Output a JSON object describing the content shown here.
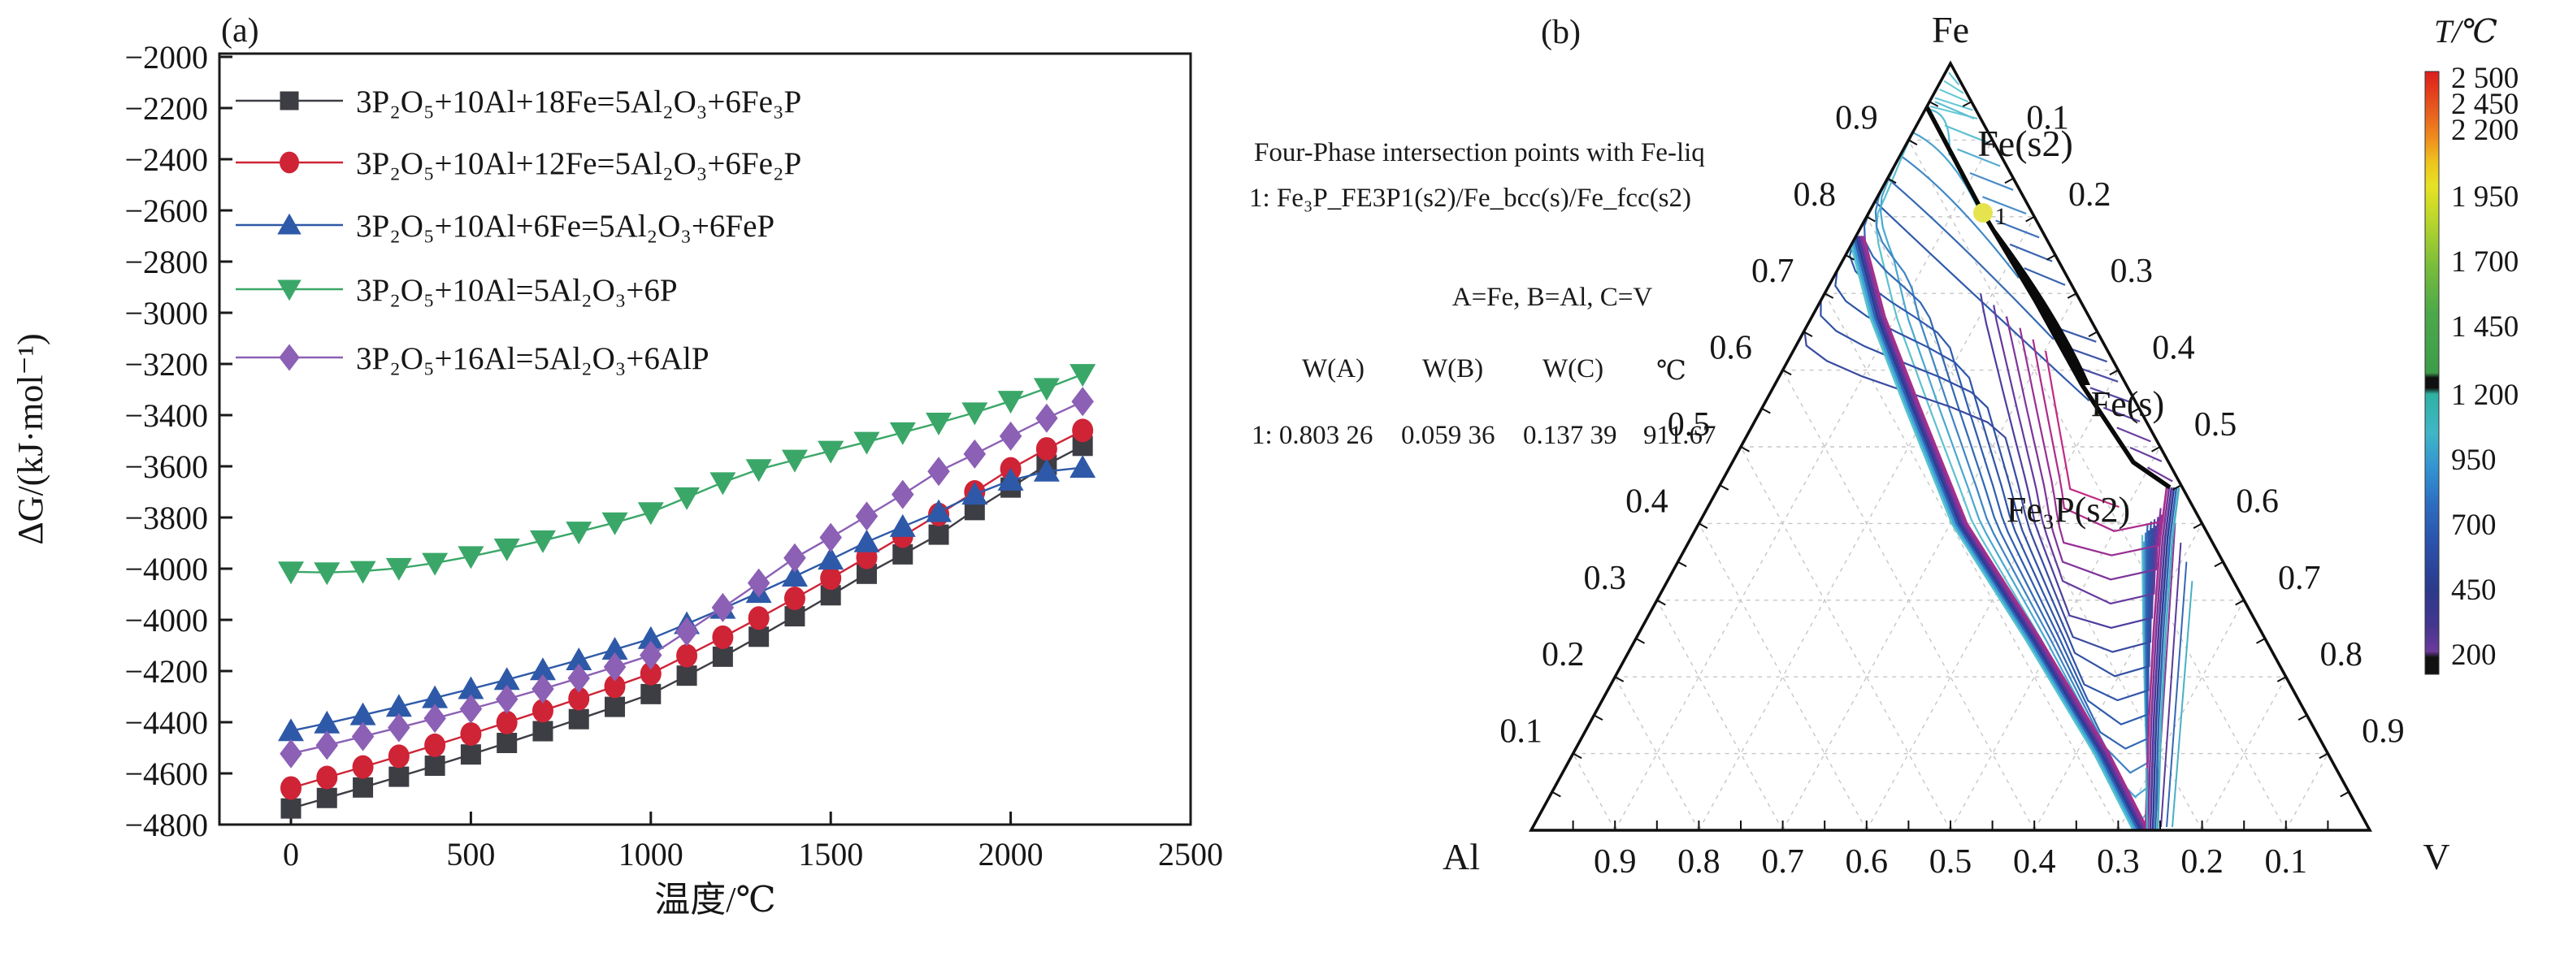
{
  "figure": {
    "panel_a_label": "(a)",
    "panel_b_label": "(b)"
  },
  "panel_a": {
    "y_title": "ΔG/(kJ·mol⁻¹)",
    "x_title": "温度/℃",
    "y_tick_labels": [
      "−2000",
      "−2200",
      "−2400",
      "−2600",
      "−2800",
      "−3000",
      "−3200",
      "−3400",
      "−3600",
      "−3800",
      "−4000",
      "−4000",
      "−4200",
      "−4400",
      "−4600",
      "−4800"
    ],
    "x_tick_labels": [
      "0",
      "500",
      "1000",
      "1500",
      "2000",
      "2500"
    ],
    "legend": [
      {
        "label": "3P₂O₅+10Al+18Fe=5Al₂O₃+6Fe₃P",
        "color": "#3d3d44",
        "marker": "square"
      },
      {
        "label": "3P₂O₅+10Al+12Fe=5Al₂O₃+6Fe₂P",
        "color": "#cf2336",
        "marker": "circle"
      },
      {
        "label": "3P₂O₅+10Al+6Fe=5Al₂O₃+6FeP",
        "color": "#2e59a8",
        "marker": "triangle-up"
      },
      {
        "label": "3P₂O₅+10Al=5Al₂O₃+6P",
        "color": "#3aa768",
        "marker": "triangle-down"
      },
      {
        "label": "3P₂O₅+16Al=5Al₂O₃+6AlP",
        "color": "#8b60b5",
        "marker": "diamond"
      }
    ]
  },
  "panel_b": {
    "annotation": {
      "line1": "Four-Phase intersection points with Fe-liq",
      "line2": "1: Fe₃P_FE3P1(s2)/Fe_bcc(s)/Fe_fcc(s2)",
      "line3": "A=Fe, B=Al, C=V",
      "table_headers": [
        "W(A)",
        "W(B)",
        "W(C)",
        "℃"
      ],
      "table_row": [
        "1: 0.803 26",
        "0.059 36",
        "0.137 39",
        "911.67"
      ]
    },
    "corner_labels": [
      "Fe",
      "Al",
      "V"
    ],
    "left_axis_labels": [
      "0.9",
      "0.8",
      "0.7",
      "0.6",
      "0.5",
      "0.4",
      "0.3",
      "0.2",
      "0.1"
    ],
    "right_axis_labels": [
      "0.1",
      "0.2",
      "0.3",
      "0.4",
      "0.5",
      "0.6",
      "0.7",
      "0.8",
      "0.9"
    ],
    "bottom_axis_labels": [
      "0.9",
      "0.8",
      "0.7",
      "0.6",
      "0.5",
      "0.4",
      "0.3",
      "0.2",
      "0.1"
    ],
    "region_labels": [
      "Fe(s2)",
      "Fe(s)",
      "Fe₃P(s2)"
    ],
    "point_label": "1",
    "colorbar": {
      "title": "T/℃",
      "tick_labels": [
        "2 500",
        "2 450",
        "2 200",
        "1 950",
        "1 700",
        "1 450",
        "1 200",
        "950",
        "700",
        "450",
        "200"
      ]
    }
  },
  "chart_data": [
    {
      "type": "line",
      "title": "",
      "xlabel": "温度/℃",
      "ylabel": "ΔG/(kJ·mol⁻¹)",
      "xlim": [
        -200,
        2500
      ],
      "ylim": [
        -5000,
        -2000
      ],
      "y_tick_labels_as_printed": [
        "−2000",
        "−2200",
        "−2400",
        "−2600",
        "−2800",
        "−3000",
        "−3200",
        "−3400",
        "−3600",
        "−3800",
        "−4000",
        "−4000",
        "−4200",
        "−4400",
        "−4600",
        "−4800"
      ],
      "grid": false,
      "legend_position": "upper-left",
      "x": [
        0,
        100,
        200,
        300,
        400,
        500,
        600,
        700,
        800,
        900,
        1000,
        1100,
        1200,
        1300,
        1400,
        1500,
        1600,
        1700,
        1800,
        1900,
        2000,
        2100,
        2200
      ],
      "series": [
        {
          "name": "3P₂O₅+10Al+18Fe=5Al₂O₃+6Fe₃P",
          "marker": "square",
          "color": "#3d3d44",
          "values": [
            -4937,
            -4896,
            -4855,
            -4813,
            -4770,
            -4726,
            -4681,
            -4635,
            -4588,
            -4540,
            -4490,
            -4418,
            -4344,
            -4266,
            -4186,
            -4104,
            -4020,
            -3944,
            -3867,
            -3771,
            -3683,
            -3594,
            -3520
          ]
        },
        {
          "name": "3P₂O₅+10Al+12Fe=5Al₂O₃+6Fe₂P",
          "marker": "circle",
          "color": "#cf2336",
          "values": [
            -4857,
            -4816,
            -4775,
            -4733,
            -4690,
            -4646,
            -4601,
            -4555,
            -4508,
            -4460,
            -4410,
            -4340,
            -4268,
            -4193,
            -4116,
            -4037,
            -3956,
            -3873,
            -3788,
            -3700,
            -3610,
            -3532,
            -3460
          ]
        },
        {
          "name": "3P₂O₅+10Al+6Fe=5Al₂O₃+6FeP",
          "marker": "triangle-up",
          "color": "#2e59a8",
          "values": [
            -4634,
            -4604,
            -4572,
            -4539,
            -4505,
            -4470,
            -4434,
            -4396,
            -4357,
            -4316,
            -4274,
            -4216,
            -4156,
            -4094,
            -4030,
            -3964,
            -3896,
            -3836,
            -3778,
            -3710,
            -3655,
            -3620,
            -3605
          ]
        },
        {
          "name": "3P₂O₅+10Al=5Al₂O₃+6P",
          "marker": "triangle-down",
          "color": "#3aa768",
          "values": [
            -4012,
            -4015,
            -4010,
            -3998,
            -3978,
            -3952,
            -3922,
            -3890,
            -3856,
            -3820,
            -3780,
            -3722,
            -3663,
            -3612,
            -3575,
            -3540,
            -3505,
            -3468,
            -3430,
            -3390,
            -3345,
            -3295,
            -3240
          ]
        },
        {
          "name": "3P₂O₅+16Al=5Al₂O₃+6AlP",
          "marker": "diamond",
          "color": "#8b60b5",
          "values": [
            -4723,
            -4690,
            -4656,
            -4621,
            -4585,
            -4548,
            -4510,
            -4470,
            -4428,
            -4384,
            -4338,
            -4246,
            -4152,
            -4056,
            -3958,
            -3878,
            -3795,
            -3710,
            -3620,
            -3552,
            -3482,
            -3412,
            -3347
          ]
        }
      ]
    },
    {
      "type": "ternary_contour",
      "corners": [
        "Fe",
        "Al",
        "V"
      ],
      "edge_tick_step": 0.1,
      "phase_regions": [
        "Fe(s2)",
        "Fe(s)",
        "Fe₃P(s2)"
      ],
      "four_phase_point": {
        "id": "1",
        "W_Fe": 0.80326,
        "W_Al": 0.05936,
        "W_V": 0.13739,
        "temp_c": 911.67
      },
      "colorbar": {
        "title": "T/℃",
        "range_labels": [
          "2 500",
          "2 450",
          "2 200",
          "1 950",
          "1 700",
          "1 450",
          "1 200",
          "950",
          "700",
          "450",
          "200"
        ]
      }
    }
  ]
}
